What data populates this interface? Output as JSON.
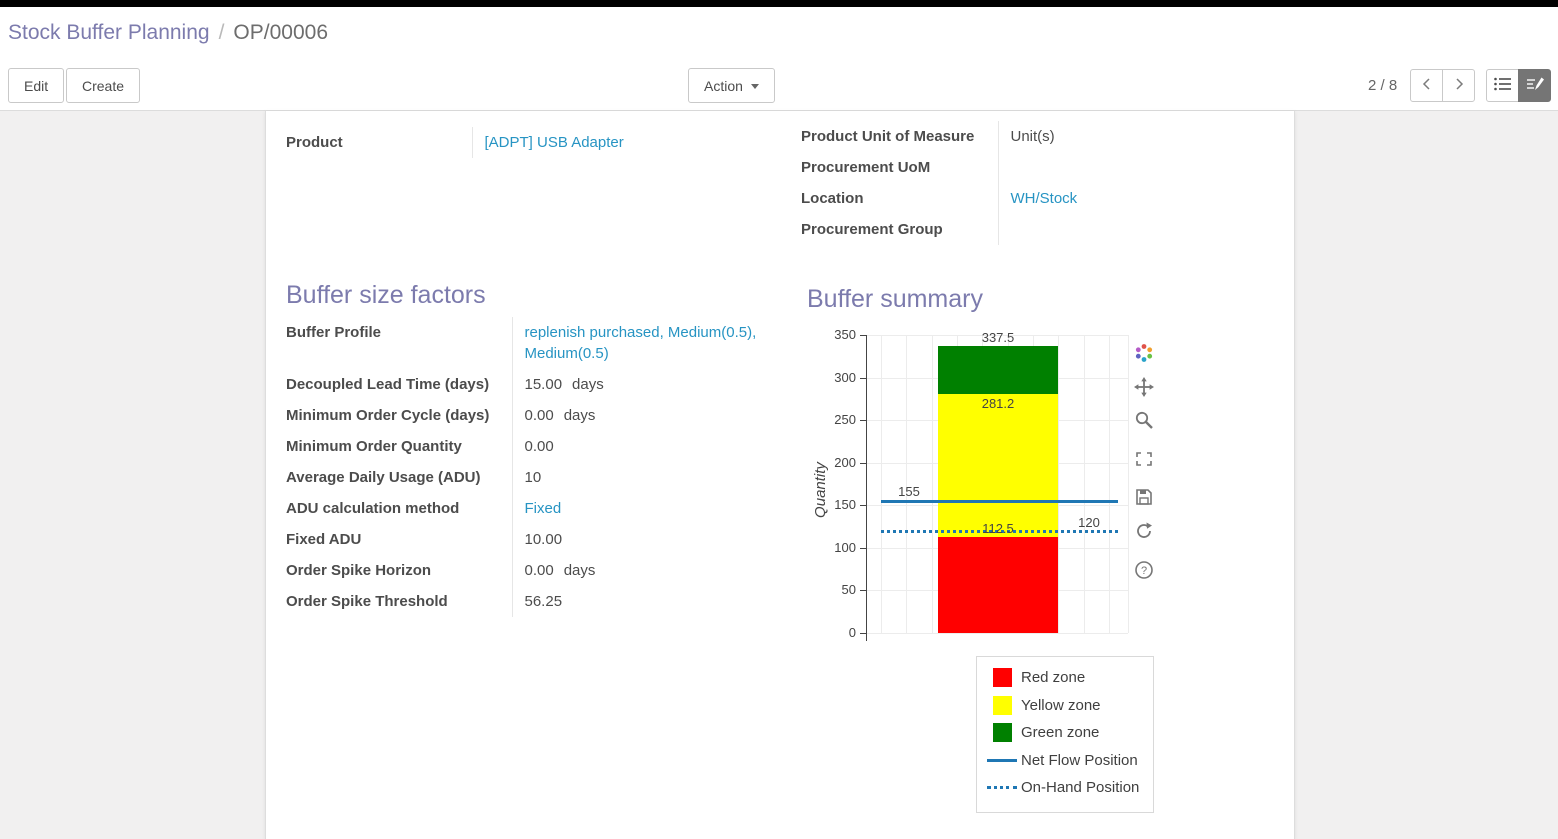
{
  "breadcrumb": {
    "parent": "Stock Buffer Planning",
    "separator": "/",
    "current": "OP/00006"
  },
  "toolbar": {
    "edit": "Edit",
    "create": "Create",
    "action": "Action",
    "pager": "2 / 8"
  },
  "form": {
    "left_fields": [
      {
        "label": "Product",
        "value": "[ADPT] USB Adapter",
        "link": true
      }
    ],
    "right_fields": [
      {
        "label": "Product Unit of Measure",
        "value": "Unit(s)",
        "link": false
      },
      {
        "label": "Procurement UoM",
        "value": "",
        "link": false
      },
      {
        "label": "Location",
        "value": "WH/Stock",
        "link": true
      },
      {
        "label": "Procurement Group",
        "value": "",
        "link": false
      }
    ],
    "sections": {
      "buffer_size": {
        "title": "Buffer size factors",
        "fields": [
          {
            "label": "Buffer Profile",
            "value": "replenish purchased, Medium(0.5), Medium(0.5)",
            "link": true
          },
          {
            "label": "Decoupled Lead Time (days)",
            "value": "15.00",
            "suffix": "days"
          },
          {
            "label": "Minimum Order Cycle (days)",
            "value": "0.00",
            "suffix": "days"
          },
          {
            "label": "Minimum Order Quantity",
            "value": "0.00"
          },
          {
            "label": "Average Daily Usage (ADU)",
            "value": "10"
          },
          {
            "label": "ADU calculation method",
            "value": "Fixed",
            "link": true
          },
          {
            "label": "Fixed ADU",
            "value": "10.00"
          },
          {
            "label": "Order Spike Horizon",
            "value": "0.00",
            "suffix": "days"
          },
          {
            "label": "Order Spike Threshold",
            "value": "56.25"
          }
        ]
      },
      "buffer_summary": {
        "title": "Buffer summary"
      }
    }
  },
  "chart_data": {
    "type": "bar",
    "title": "",
    "xlabel": "",
    "ylabel": "Quantity",
    "ylim": [
      0,
      350
    ],
    "yticks": [
      0,
      50,
      100,
      150,
      200,
      250,
      300,
      350
    ],
    "zones": [
      {
        "name": "Red zone",
        "from": 0,
        "to": 112.5,
        "color": "#ff0000"
      },
      {
        "name": "Yellow zone",
        "from": 112.5,
        "to": 281.2,
        "color": "#ffff00"
      },
      {
        "name": "Green zone",
        "from": 281.2,
        "to": 337.5,
        "color": "#008000"
      }
    ],
    "lines": [
      {
        "name": "Net Flow Position",
        "value": 155,
        "style": "solid",
        "color": "#1f77b4"
      },
      {
        "name": "On-Hand Position",
        "value": 120,
        "style": "dotted",
        "color": "#1f77b4"
      }
    ],
    "annotations": {
      "bar_top": "337.5",
      "yellow_top": "281.2",
      "red_top": "112.5",
      "net_flow": "155",
      "on_hand": "120"
    },
    "legend": [
      {
        "label": "Red zone",
        "swatch": "square",
        "color": "#ff0000"
      },
      {
        "label": "Yellow zone",
        "swatch": "square",
        "color": "#ffff00"
      },
      {
        "label": "Green zone",
        "swatch": "square",
        "color": "#008000"
      },
      {
        "label": "Net Flow Position",
        "swatch": "line",
        "color": "#1f77b4"
      },
      {
        "label": "On-Hand Position",
        "swatch": "dots",
        "color": "#1f77b4"
      }
    ],
    "modebar": [
      "plotly-logo",
      "pan",
      "zoom",
      "autoscale",
      "save",
      "reset",
      "help"
    ]
  }
}
